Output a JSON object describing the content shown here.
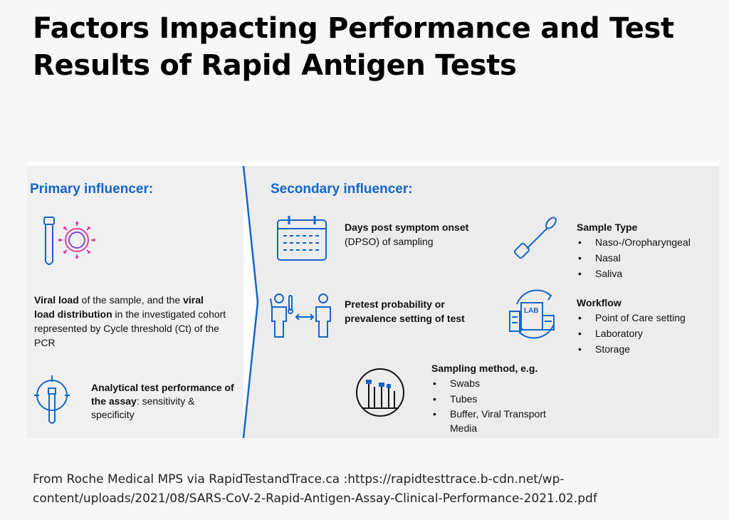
{
  "title": {
    "line1": "Factors Impacting Performance and Test",
    "line2": "Results of Rapid Antigen Tests"
  },
  "primary": {
    "heading": "Primary influencer:",
    "viral_load": {
      "b1": "Viral load",
      "t1": " of the sample, and the ",
      "b2": "viral load distribution",
      "t2": " in the investigated cohort represented by Cycle threshold (Ct) of the PCR"
    },
    "analytical": {
      "b1": "Analytical test performance of the assay",
      "t1": ": sensitivity & specificity"
    }
  },
  "secondary": {
    "heading": "Secondary influencer:",
    "dpso": {
      "bold": "Days post symptom onset",
      "rest": "(DPSO) of sampling"
    },
    "pretest": {
      "bold": "Pretest probability or prevalence setting of test"
    },
    "sample_type": {
      "title": "Sample Type",
      "items": [
        "Naso-/Oropharyngeal",
        "Nasal",
        "Saliva"
      ]
    },
    "workflow": {
      "title": "Workflow",
      "items": [
        "Point of Care setting",
        "Laboratory",
        "Storage"
      ],
      "lab_label": "LAB"
    },
    "sampling": {
      "title": "Sampling method, e.g.",
      "items": [
        "Swabs",
        "Tubes",
        "Buffer, Viral Transport Media"
      ]
    }
  },
  "footer": {
    "line1": "From Roche Medical MPS via RapidTestandTrace.ca :https://rapidtesttrace.b-cdn.net/wp-",
    "line2": "content/uploads/2021/08/SARS-CoV-2-Rapid-Antigen-Assay-Clinical-Performance-2021.02.pdf"
  },
  "colors": {
    "accent": "#1466c8",
    "panel_left": "#f0f0f0",
    "panel_right": "#ececec"
  },
  "icons": [
    "test-tube-icon",
    "virus-icon",
    "target-tube-icon",
    "calendar-icon",
    "people-arrow-icon",
    "swab-icon",
    "lab-cycle-icon",
    "test-tubes-icon"
  ]
}
